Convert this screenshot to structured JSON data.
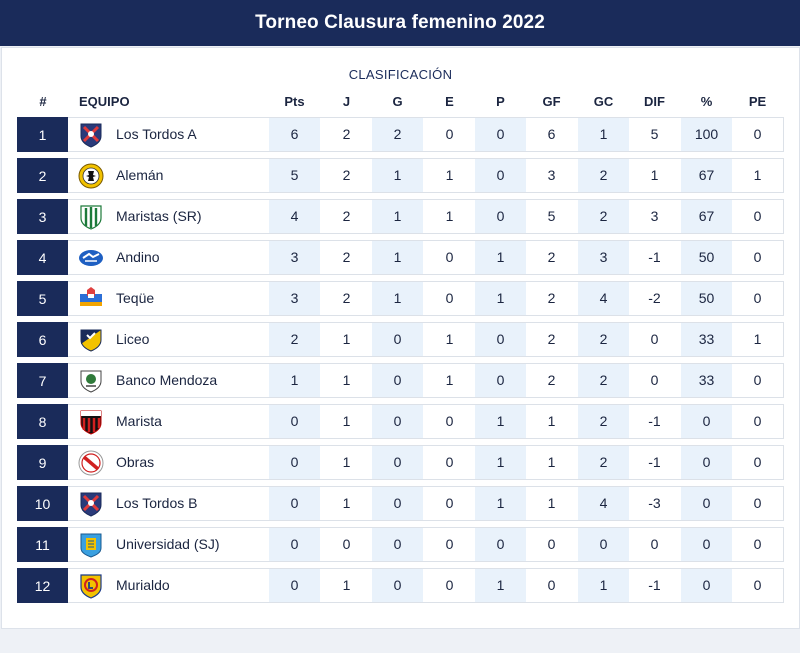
{
  "header": {
    "title": "Torneo Clausura femenino 2022"
  },
  "table": {
    "subtitle": "CLASIFICACIÓN",
    "columns": [
      "#",
      "EQUIPO",
      "Pts",
      "J",
      "G",
      "E",
      "P",
      "GF",
      "GC",
      "DIF",
      "%",
      "PE"
    ],
    "rows": [
      {
        "pos": "1",
        "team": "Los Tordos A",
        "logo": "los-tordos-crest",
        "pts": "6",
        "j": "2",
        "g": "2",
        "e": "0",
        "p": "0",
        "gf": "6",
        "gc": "1",
        "dif": "5",
        "pct": "100",
        "pe": "0"
      },
      {
        "pos": "2",
        "team": "Alemán",
        "logo": "aleman-crest",
        "pts": "5",
        "j": "2",
        "g": "1",
        "e": "1",
        "p": "0",
        "gf": "3",
        "gc": "2",
        "dif": "1",
        "pct": "67",
        "pe": "1"
      },
      {
        "pos": "3",
        "team": "Maristas (SR)",
        "logo": "maristas-sr-crest",
        "pts": "4",
        "j": "2",
        "g": "1",
        "e": "1",
        "p": "0",
        "gf": "5",
        "gc": "2",
        "dif": "3",
        "pct": "67",
        "pe": "0"
      },
      {
        "pos": "4",
        "team": "Andino",
        "logo": "andino-crest",
        "pts": "3",
        "j": "2",
        "g": "1",
        "e": "0",
        "p": "1",
        "gf": "2",
        "gc": "3",
        "dif": "-1",
        "pct": "50",
        "pe": "0"
      },
      {
        "pos": "5",
        "team": "Teqüe",
        "logo": "teque-crest",
        "pts": "3",
        "j": "2",
        "g": "1",
        "e": "0",
        "p": "1",
        "gf": "2",
        "gc": "4",
        "dif": "-2",
        "pct": "50",
        "pe": "0"
      },
      {
        "pos": "6",
        "team": "Liceo",
        "logo": "liceo-crest",
        "pts": "2",
        "j": "1",
        "g": "0",
        "e": "1",
        "p": "0",
        "gf": "2",
        "gc": "2",
        "dif": "0",
        "pct": "33",
        "pe": "1"
      },
      {
        "pos": "7",
        "team": "Banco Mendoza",
        "logo": "banco-mendoza-crest",
        "pts": "1",
        "j": "1",
        "g": "0",
        "e": "1",
        "p": "0",
        "gf": "2",
        "gc": "2",
        "dif": "0",
        "pct": "33",
        "pe": "0"
      },
      {
        "pos": "8",
        "team": "Marista",
        "logo": "marista-crest",
        "pts": "0",
        "j": "1",
        "g": "0",
        "e": "0",
        "p": "1",
        "gf": "1",
        "gc": "2",
        "dif": "-1",
        "pct": "0",
        "pe": "0"
      },
      {
        "pos": "9",
        "team": "Obras",
        "logo": "obras-crest",
        "pts": "0",
        "j": "1",
        "g": "0",
        "e": "0",
        "p": "1",
        "gf": "1",
        "gc": "2",
        "dif": "-1",
        "pct": "0",
        "pe": "0"
      },
      {
        "pos": "10",
        "team": "Los Tordos B",
        "logo": "los-tordos-crest",
        "pts": "0",
        "j": "1",
        "g": "0",
        "e": "0",
        "p": "1",
        "gf": "1",
        "gc": "4",
        "dif": "-3",
        "pct": "0",
        "pe": "0"
      },
      {
        "pos": "11",
        "team": "Universidad (SJ)",
        "logo": "universidad-sj-crest",
        "pts": "0",
        "j": "0",
        "g": "0",
        "e": "0",
        "p": "0",
        "gf": "0",
        "gc": "0",
        "dif": "0",
        "pct": "0",
        "pe": "0"
      },
      {
        "pos": "12",
        "team": "Murialdo",
        "logo": "murialdo-crest",
        "pts": "0",
        "j": "1",
        "g": "0",
        "e": "0",
        "p": "1",
        "gf": "0",
        "gc": "1",
        "dif": "-1",
        "pct": "0",
        "pe": "0"
      }
    ]
  },
  "colors": {
    "header_bg": "#1a2b5a",
    "position_bg": "#1a2b5a",
    "shade": "#e9f2fb"
  }
}
